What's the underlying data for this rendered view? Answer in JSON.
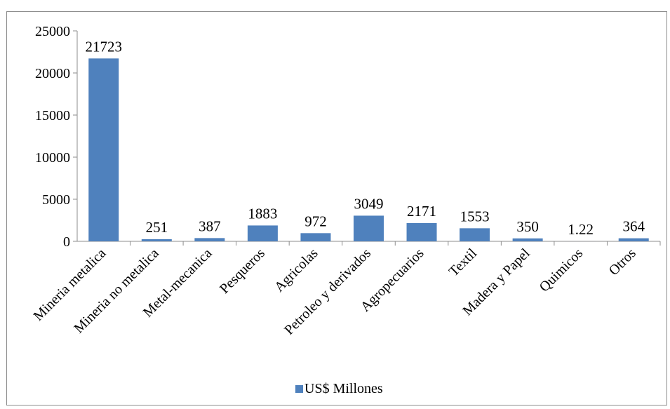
{
  "chart_data": {
    "type": "bar",
    "title": "",
    "xlabel": "",
    "ylabel": "",
    "ylim": [
      0,
      25000
    ],
    "yticks": [
      0,
      5000,
      10000,
      15000,
      20000,
      25000
    ],
    "grid": false,
    "legend_position": "bottom",
    "categories": [
      "Mineria metalica",
      "Mineria no metalica",
      "Metal-mecanica",
      "Pesqueros",
      "Agricolas",
      "Petroleo y derivados",
      "Agropecuarios",
      "Textil",
      "Madera y Papel",
      "Quimicos",
      "Otros"
    ],
    "series": [
      {
        "name": "US$ Millones",
        "color": "#4f81bd",
        "values": [
          21723,
          251,
          387,
          1883,
          972,
          3049,
          2171,
          1553,
          350,
          1.22,
          364
        ],
        "labels": [
          "21723",
          "251",
          "387",
          "1883",
          "972",
          "3049",
          "2171",
          "1553",
          "350",
          "1.22",
          "364"
        ]
      }
    ]
  }
}
